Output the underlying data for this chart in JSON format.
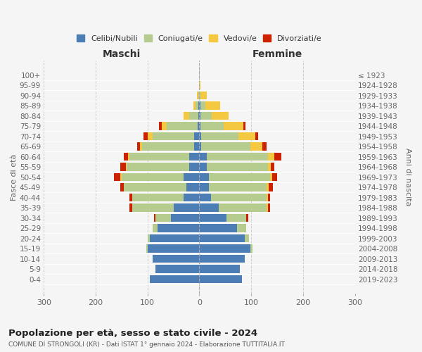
{
  "age_groups": [
    "0-4",
    "5-9",
    "10-14",
    "15-19",
    "20-24",
    "25-29",
    "30-34",
    "35-39",
    "40-44",
    "45-49",
    "50-54",
    "55-59",
    "60-64",
    "65-69",
    "70-74",
    "75-79",
    "80-84",
    "85-89",
    "90-94",
    "95-99",
    "100+"
  ],
  "birth_years": [
    "2019-2023",
    "2014-2018",
    "2009-2013",
    "2004-2008",
    "1999-2003",
    "1994-1998",
    "1989-1993",
    "1984-1988",
    "1979-1983",
    "1974-1978",
    "1969-1973",
    "1964-1968",
    "1959-1963",
    "1954-1958",
    "1949-1953",
    "1944-1948",
    "1939-1943",
    "1934-1938",
    "1929-1933",
    "1924-1928",
    "≤ 1923"
  ],
  "males_celibi": [
    95,
    85,
    90,
    100,
    95,
    80,
    55,
    50,
    30,
    25,
    30,
    20,
    20,
    10,
    10,
    3,
    2,
    2,
    0,
    0,
    0
  ],
  "males_coniugati": [
    0,
    0,
    0,
    2,
    5,
    10,
    30,
    80,
    100,
    120,
    120,
    120,
    115,
    100,
    80,
    60,
    18,
    5,
    2,
    0,
    0
  ],
  "males_vedovi": [
    0,
    0,
    0,
    0,
    0,
    0,
    0,
    0,
    0,
    0,
    2,
    2,
    3,
    5,
    10,
    10,
    10,
    5,
    2,
    0,
    0
  ],
  "males_divorziati": [
    0,
    0,
    0,
    0,
    0,
    0,
    2,
    5,
    5,
    8,
    12,
    10,
    8,
    5,
    8,
    5,
    0,
    0,
    0,
    0,
    0
  ],
  "females_nubili": [
    82,
    78,
    88,
    98,
    88,
    72,
    52,
    38,
    22,
    18,
    18,
    14,
    14,
    4,
    4,
    2,
    2,
    2,
    0,
    0,
    0
  ],
  "females_coniugate": [
    0,
    0,
    0,
    4,
    8,
    18,
    38,
    92,
    108,
    112,
    118,
    118,
    118,
    95,
    72,
    45,
    22,
    10,
    2,
    0,
    0
  ],
  "females_vedove": [
    0,
    0,
    0,
    0,
    0,
    0,
    0,
    2,
    2,
    4,
    4,
    6,
    12,
    22,
    32,
    38,
    32,
    28,
    12,
    2,
    0
  ],
  "females_divorziate": [
    0,
    0,
    0,
    0,
    0,
    0,
    4,
    4,
    4,
    8,
    10,
    6,
    14,
    8,
    6,
    4,
    0,
    0,
    0,
    0,
    0
  ],
  "color_celibi": "#4C7DB5",
  "color_coniugati": "#B5CC8E",
  "color_vedovi": "#F5C842",
  "color_divorziati": "#CC2200",
  "xlim": 300,
  "xticks": [
    -300,
    -200,
    -100,
    0,
    100,
    200,
    300
  ],
  "title": "Popolazione per età, sesso e stato civile - 2024",
  "subtitle": "COMUNE DI STRONGOLI (KR) - Dati ISTAT 1° gennaio 2024 - Elaborazione TUTTITALIA.IT",
  "ylabel_left": "Fasce di età",
  "ylabel_right": "Anni di nascita",
  "label_maschi": "Maschi",
  "label_femmine": "Femmine",
  "legend_labels": [
    "Celibi/Nubili",
    "Coniugati/e",
    "Vedovi/e",
    "Divorziati/e"
  ],
  "bg_color": "#f5f5f5"
}
